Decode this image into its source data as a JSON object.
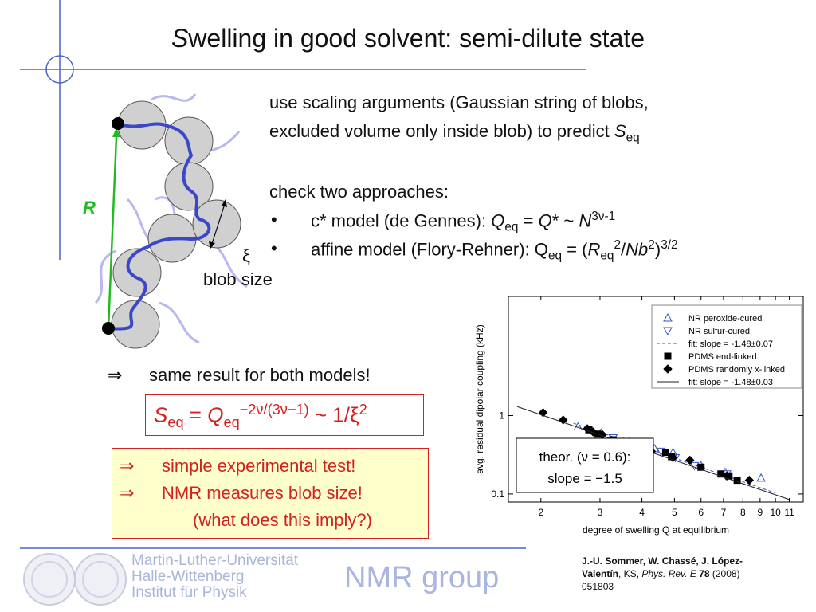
{
  "slide": {
    "title_lead": "S",
    "title_rest": "welling in good solvent: semi-dilute state",
    "intro": [
      "use scaling arguments (Gaussian string of blobs,",
      "excluded volume only inside blob) to predict ",
      "S",
      "eq"
    ],
    "check": "check two approaches:",
    "bullets": [
      {
        "marker": "•",
        "parts": [
          "c* model (de Gennes): ",
          "Q",
          "eq",
          " = ",
          "Q",
          "* ~ ",
          "N",
          "3ν-1"
        ]
      },
      {
        "marker": "•",
        "parts": [
          "affine model (Flory-Rehner): Q",
          "eq",
          " = (",
          "R",
          "eq",
          "2",
          "/",
          "Nb",
          "2",
          ")",
          "3/2"
        ]
      }
    ],
    "diagram": {
      "R": "R",
      "xi": "ξ",
      "blob_size": "blob size"
    },
    "result": {
      "arrow": "⇒",
      "text": "same result for both models!"
    },
    "formula": [
      "S",
      "eq",
      " = ",
      "Q",
      "eq",
      "−2ν/(3ν−1)",
      " ~ 1/ξ",
      "2"
    ],
    "conclusions": [
      {
        "arrow": "⇒",
        "text": "simple experimental test!"
      },
      {
        "arrow": "⇒",
        "text": "NMR measures blob size!"
      },
      {
        "text": "(what does this imply?)"
      }
    ],
    "footer": {
      "institution": [
        "Martin-Luther-Universität",
        "Halle-Wittenberg",
        "Institut für Physik"
      ],
      "group": "NMR group"
    },
    "reference": [
      "J.-U. Sommer, W. Chassé, J. López-Valentín",
      ", KS, ",
      "Phys. Rev. E",
      " ",
      "78",
      " (2008) 051803"
    ]
  },
  "chart_data": {
    "type": "scatter",
    "xlabel": "degree of swelling Q at equilibrium",
    "ylabel": "avg. residual dipolar coupling (kHz)",
    "xscale": "log",
    "yscale": "log",
    "xlim": [
      1.6,
      12.1
    ],
    "ylim": [
      0.079,
      33
    ],
    "xticks": [
      2,
      3,
      4,
      5,
      6,
      7,
      8,
      9,
      10,
      11
    ],
    "yticks": [
      0.1,
      1
    ],
    "legend": "upper right",
    "annotation": [
      "theor. (ν = 0.6):",
      "slope = −1.5"
    ],
    "series": [
      {
        "name": "NR peroxide-cured",
        "color": "#3a55c8",
        "marker": "triangle-up",
        "filled": false,
        "x": [
          2.58,
          3.02,
          3.66,
          4.04,
          4.36,
          4.95,
          6.0,
          7.08,
          9.06
        ],
        "values": [
          0.72,
          0.6,
          0.46,
          0.41,
          0.38,
          0.34,
          0.23,
          0.19,
          0.16
        ]
      },
      {
        "name": "NR sulfur-cured",
        "color": "#3a55c8",
        "marker": "triangle-down",
        "filled": false,
        "x": [
          3.28,
          4.13,
          4.56,
          5.03,
          5.74,
          7.16
        ],
        "values": [
          0.52,
          0.38,
          0.35,
          0.29,
          0.23,
          0.18
        ]
      },
      {
        "name": "fit: slope = -1.48±0.07",
        "color": "#3a55c8",
        "line": "dashed",
        "x": [
          2.5,
          10
        ],
        "values": [
          0.8,
          0.103
        ]
      },
      {
        "name": "PDMS end-linked",
        "color": "#000000",
        "marker": "square",
        "filled": true,
        "x": [
          2.78,
          2.95,
          3.28,
          3.62,
          4.2,
          4.71,
          4.9,
          6.0,
          6.88,
          7.27,
          7.69
        ],
        "values": [
          0.66,
          0.58,
          0.49,
          0.46,
          0.34,
          0.34,
          0.3,
          0.22,
          0.18,
          0.17,
          0.15
        ]
      },
      {
        "name": "PDMS randomly x-linked",
        "color": "#000000",
        "marker": "diamond",
        "filled": true,
        "x": [
          2.03,
          2.33,
          2.75,
          2.86,
          3.05,
          3.52,
          3.87,
          4.27,
          4.95,
          5.56,
          7.16,
          8.36
        ],
        "values": [
          1.09,
          0.88,
          0.68,
          0.62,
          0.57,
          0.46,
          0.41,
          0.35,
          0.29,
          0.27,
          0.17,
          0.15
        ]
      },
      {
        "name": "fit: slope = -1.48±0.03",
        "color": "#222222",
        "line": "solid",
        "x": [
          1.7,
          11
        ],
        "values": [
          1.3,
          0.085
        ]
      }
    ]
  }
}
